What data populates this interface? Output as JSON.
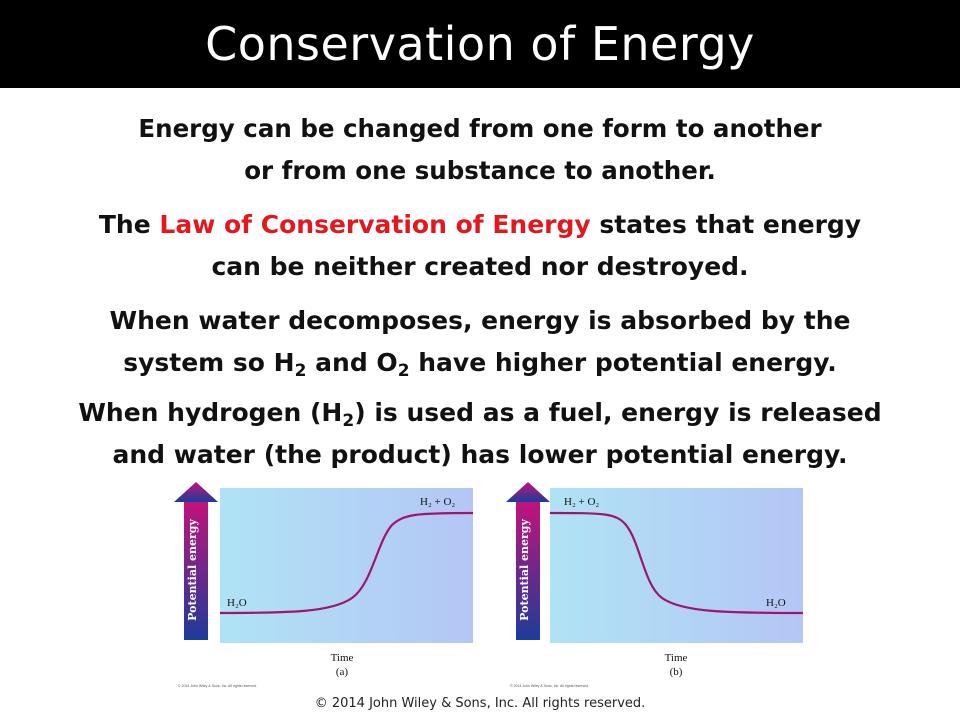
{
  "title": "Conservation of Energy",
  "paragraphs": {
    "p1_line1": "Energy can be changed from one form to another",
    "p1_line2": "or from one substance to another.",
    "p2_prefix": "The ",
    "p2_highlight": "Law of Conservation of Energy",
    "p2_suffix": " states that energy",
    "p2_line2": "can be neither created nor destroyed.",
    "p3_line1": "When water decomposes, energy is absorbed by the",
    "p3_a": "system so H",
    "p3_sub1": "2",
    "p3_b": " and O",
    "p3_sub2": "2",
    "p3_c": " have higher potential energy.",
    "p4_a": "When hydrogen (H",
    "p4_sub": "2",
    "p4_b": ") is used as a fuel, energy is released",
    "p4_line2": "and water (the product) has lower potential energy."
  },
  "diagrams": [
    {
      "y_label": "Potential energy",
      "x_label": "Time",
      "caption": "(a)",
      "low_label": "H₂O",
      "high_label": "H₂ + O₂",
      "credit": "© 2014 John Wiley & Sons, Inc. All rights reserved.",
      "direction": "increase"
    },
    {
      "y_label": "Potential energy",
      "x_label": "Time",
      "caption": "(b)",
      "low_label": "H₂O",
      "high_label": "H₂ + O₂",
      "credit": "© 2014 John Wiley & Sons, Inc. All rights reserved.",
      "direction": "decrease"
    }
  ],
  "footer": "© 2014 John Wiley & Sons, Inc. All rights reserved.",
  "colors": {
    "title_bg": "#000000",
    "highlight": "#e3181e",
    "curve": "#a0156e",
    "panel_left": "#b0e3f5",
    "panel_right": "#b4c6f5",
    "arrow_top": "#c4127a",
    "arrow_bottom": "#1c3c9a"
  }
}
